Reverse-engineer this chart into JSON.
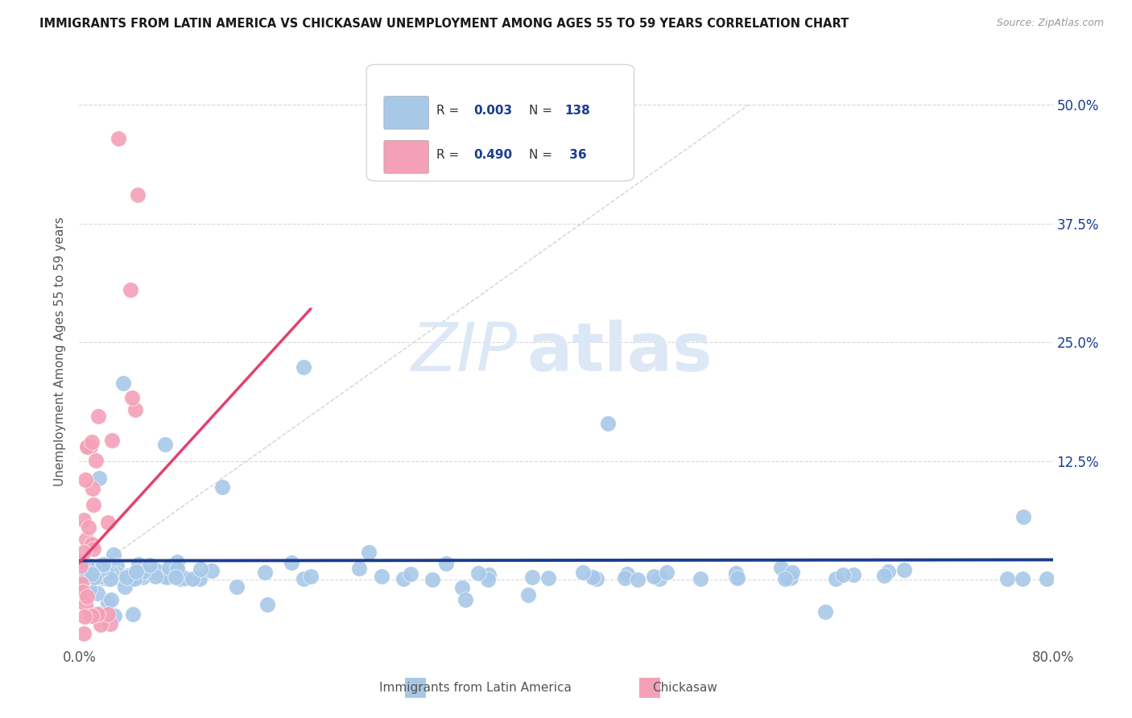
{
  "title": "IMMIGRANTS FROM LATIN AMERICA VS CHICKASAW UNEMPLOYMENT AMONG AGES 55 TO 59 YEARS CORRELATION CHART",
  "source": "Source: ZipAtlas.com",
  "ylabel": "Unemployment Among Ages 55 to 59 years",
  "xlim": [
    0.0,
    0.8
  ],
  "ylim": [
    -0.07,
    0.55
  ],
  "yticks": [
    0.0,
    0.125,
    0.25,
    0.375,
    0.5
  ],
  "ytick_labels": [
    "",
    "12.5%",
    "25.0%",
    "37.5%",
    "50.0%"
  ],
  "xticks": [
    0.0,
    0.2,
    0.4,
    0.6,
    0.8
  ],
  "xtick_labels": [
    "0.0%",
    "",
    "",
    "",
    "80.0%"
  ],
  "blue_color": "#a8c8e8",
  "pink_color": "#f4a0b8",
  "blue_line_color": "#1a3d8f",
  "pink_line_color": "#e0436e",
  "gray_dashed_color": "#c8c8c8",
  "background_color": "#ffffff",
  "watermark_zip": "ZIP",
  "watermark_atlas": "atlas",
  "watermark_color": "#dce8f5",
  "seed": 99
}
